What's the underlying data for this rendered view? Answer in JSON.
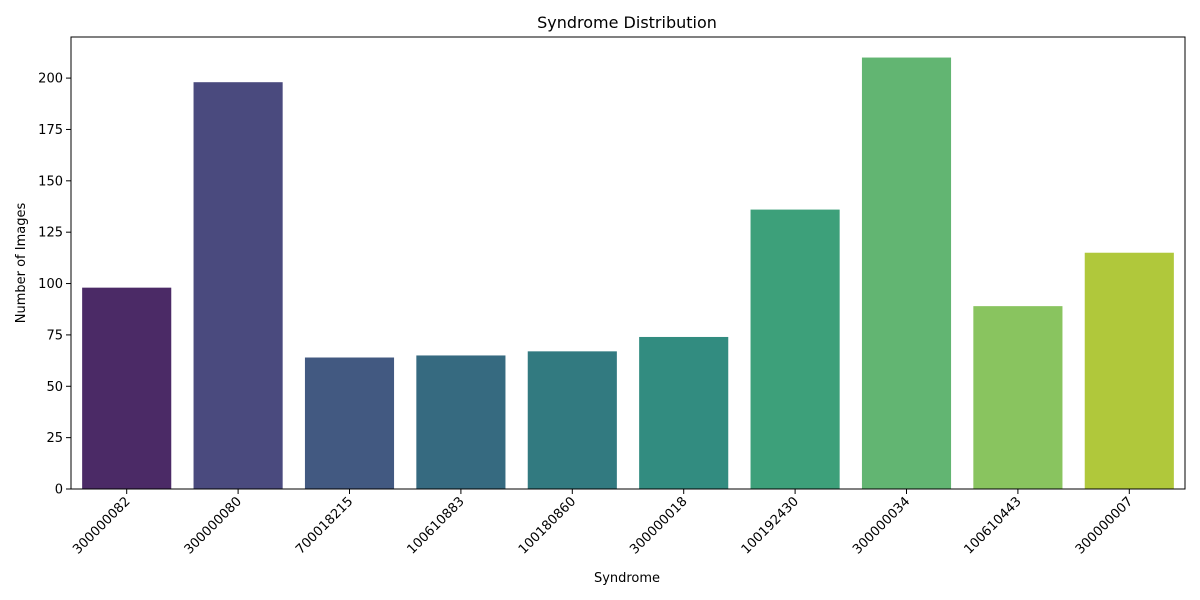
{
  "chart_data": {
    "type": "bar",
    "title": "Syndrome Distribution",
    "xlabel": "Syndrome",
    "ylabel": "Number of Images",
    "categories": [
      "300000082",
      "300000080",
      "700018215",
      "100610883",
      "100180860",
      "300000018",
      "100192430",
      "300000034",
      "100610443",
      "300000007"
    ],
    "values": [
      98,
      198,
      64,
      65,
      67,
      74,
      136,
      210,
      89,
      115
    ],
    "colors": [
      "#4b2a66",
      "#4a4a7e",
      "#425981",
      "#366a80",
      "#327a80",
      "#328c80",
      "#3da07a",
      "#62b572",
      "#89c45f",
      "#b0c83b"
    ],
    "ylim": [
      0,
      220
    ],
    "yticks": [
      0,
      25,
      50,
      75,
      100,
      125,
      150,
      175,
      200
    ],
    "grid": false,
    "legend": "none"
  }
}
